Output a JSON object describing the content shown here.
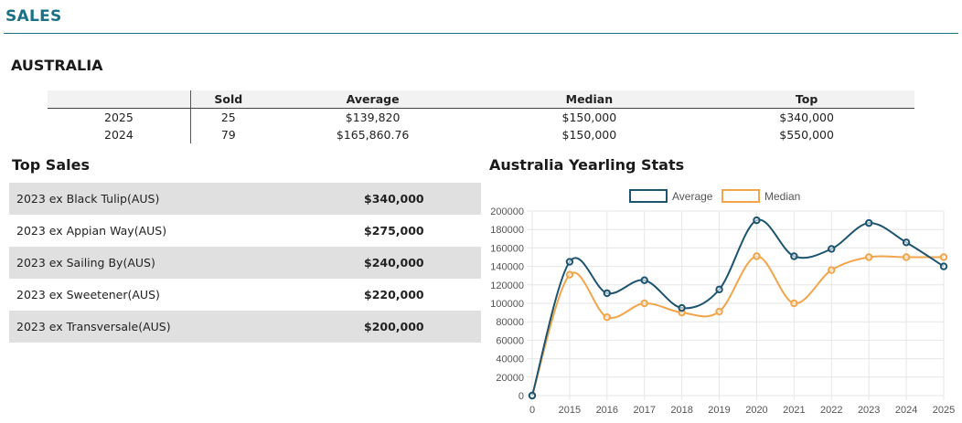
{
  "header": {
    "title": "SALES"
  },
  "country": "AUSTRALIA",
  "summary": {
    "columns": [
      "",
      "Sold",
      "Average",
      "Median",
      "Top"
    ],
    "rows": [
      [
        "2025",
        "25",
        "$139,820",
        "$150,000",
        "$340,000"
      ],
      [
        "2024",
        "79",
        "$165,860.76",
        "$150,000",
        "$550,000"
      ]
    ]
  },
  "top_sales": {
    "title": "Top Sales",
    "items": [
      {
        "name": "2023 ex Black Tulip(AUS)",
        "price": "$340,000"
      },
      {
        "name": "2023 ex Appian Way(AUS)",
        "price": "$275,000"
      },
      {
        "name": "2023 ex Sailing By(AUS)",
        "price": "$240,000"
      },
      {
        "name": "2023 ex Sweetener(AUS)",
        "price": "$220,000"
      },
      {
        "name": "2023 ex Transversale(AUS)",
        "price": "$200,000"
      }
    ]
  },
  "chart_data": {
    "type": "line",
    "title": "Australia Yearling Stats",
    "categories": [
      "0",
      "2015",
      "2016",
      "2017",
      "2018",
      "2019",
      "2020",
      "2021",
      "2022",
      "2023",
      "2024",
      "2025"
    ],
    "series": [
      {
        "name": "Average",
        "color": "#1d5470",
        "values": [
          0,
          145000,
          111000,
          125000,
          95000,
          115000,
          190000,
          151000,
          159000,
          187000,
          166000,
          140000
        ]
      },
      {
        "name": "Median",
        "color": "#f2a54a",
        "values": [
          0,
          131000,
          85000,
          100000,
          90000,
          91000,
          151000,
          100000,
          136000,
          150000,
          150000,
          150000
        ]
      }
    ],
    "ylim": [
      0,
      200000
    ],
    "yticks": [
      "0",
      "20000",
      "40000",
      "60000",
      "80000",
      "100000",
      "120000",
      "140000",
      "160000",
      "180000",
      "200000"
    ],
    "grid": true,
    "legend": "top",
    "smooth": true
  }
}
